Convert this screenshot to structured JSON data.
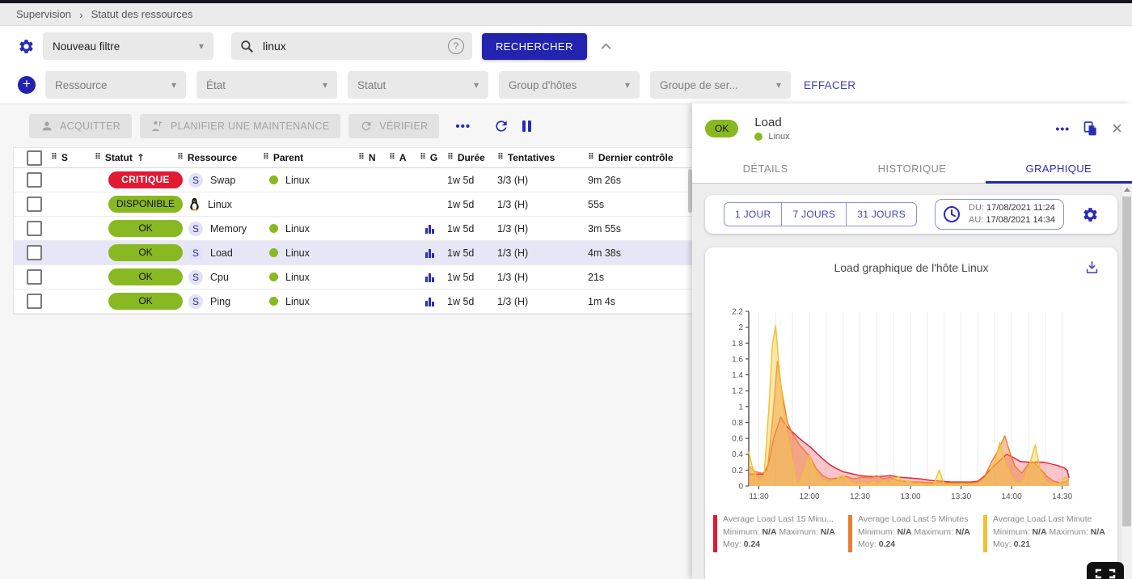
{
  "colors": {
    "accent_blue": "#2a2cb5",
    "button_blue": "#2223ae",
    "ok_green": "#88b922",
    "critical_red": "#e31932",
    "panel_bg": "#ededed",
    "selected_row": "#e7e6f6"
  },
  "icons": {
    "plus": "+",
    "close": "×",
    "more": "•••",
    "caret": "▾",
    "help": "?",
    "sort_up": "↑",
    "grip": "⠿",
    "breadcrumb_sep": "›"
  },
  "breadcrumb": {
    "items": [
      "Supervision",
      "Statut des ressources"
    ]
  },
  "filters": {
    "saved_filter_value": "Nouveau filtre",
    "search_value": "linux",
    "search_button": "RECHERCHER",
    "criteria": [
      {
        "label": "Ressource"
      },
      {
        "label": "État"
      },
      {
        "label": "Statut"
      },
      {
        "label": "Group d'hôtes"
      },
      {
        "label": "Groupe de ser..."
      }
    ],
    "clear_label": "EFFACER"
  },
  "toolbar": {
    "acquitter": "ACQUITTER",
    "planifier": "PLANIFIER UNE MAINTENANCE",
    "verifier": "VÉRIFIER"
  },
  "table": {
    "headers": {
      "s": "S",
      "statut": "Statut",
      "ressource": "Ressource",
      "parent": "Parent",
      "n": "N",
      "a": "A",
      "g": "G",
      "duree": "Durée",
      "tentatives": "Tentatives",
      "dernier": "Dernier contrôle"
    },
    "rows": [
      {
        "statut": "CRITIQUE",
        "severity": "critical",
        "badge": "S",
        "ressource": "Swap",
        "parent": "Linux",
        "graph": false,
        "duree": "1w 5d",
        "tentatives": "3/3 (H)",
        "dernier": "9m 26s",
        "selected": false
      },
      {
        "statut": "DISPONIBLE",
        "severity": "ok",
        "badge": "penguin-icon",
        "ressource": "Linux",
        "parent": "",
        "graph": false,
        "duree": "1w 5d",
        "tentatives": "1/3 (H)",
        "dernier": "55s",
        "selected": false
      },
      {
        "statut": "OK",
        "severity": "ok",
        "badge": "S",
        "ressource": "Memory",
        "parent": "Linux",
        "graph": true,
        "duree": "1w 5d",
        "tentatives": "1/3 (H)",
        "dernier": "3m 55s",
        "selected": false
      },
      {
        "statut": "OK",
        "severity": "ok",
        "badge": "S",
        "ressource": "Load",
        "parent": "Linux",
        "graph": true,
        "duree": "1w 5d",
        "tentatives": "1/3 (H)",
        "dernier": "4m 38s",
        "selected": true
      },
      {
        "statut": "OK",
        "severity": "ok",
        "badge": "S",
        "ressource": "Cpu",
        "parent": "Linux",
        "graph": true,
        "duree": "1w 5d",
        "tentatives": "1/3 (H)",
        "dernier": "21s",
        "selected": false
      },
      {
        "statut": "OK",
        "severity": "ok",
        "badge": "S",
        "ressource": "Ping",
        "parent": "Linux",
        "graph": true,
        "duree": "1w 5d",
        "tentatives": "1/3 (H)",
        "dernier": "1m 4s",
        "selected": false
      }
    ]
  },
  "panel": {
    "status": "OK",
    "title": "Load",
    "host": "Linux",
    "tabs": [
      {
        "label": "DÉTAILS"
      },
      {
        "label": "HISTORIQUE"
      },
      {
        "label": "GRAPHIQUE"
      }
    ],
    "active_tab": "GRAPHIQUE",
    "time_buttons": [
      {
        "label": "1 JOUR"
      },
      {
        "label": "7 JOURS"
      },
      {
        "label": "31 JOURS"
      }
    ],
    "period": {
      "du_label": "DU:",
      "du_value": "17/08/2021 11:24",
      "au_label": "AU:",
      "au_value": "17/08/2021 14:34"
    },
    "legend_labels": {
      "minimum": "Minimum:",
      "maximum": "Maximum:",
      "moy": "Moy:"
    }
  },
  "chart_data": {
    "type": "area",
    "title": "Load graphique de l'hôte Linux",
    "x_domain_minutes": [
      0,
      190
    ],
    "x_start_time": "11:24",
    "x_end_time": "14:34",
    "ylim": [
      0,
      2.2
    ],
    "y_tick_step": 0.2,
    "grid_minutes": 10,
    "grid_start_minute": 6,
    "x_ticks": [
      {
        "min": 6,
        "label": "11:30"
      },
      {
        "min": 36,
        "label": "12:00"
      },
      {
        "min": 66,
        "label": "12:30"
      },
      {
        "min": 96,
        "label": "13:00"
      },
      {
        "min": 126,
        "label": "13:30"
      },
      {
        "min": 156,
        "label": "14:00"
      },
      {
        "min": 186,
        "label": "14:30"
      }
    ],
    "series": [
      {
        "name": "Average Load Last 15 Minu...",
        "color": "#e3192f",
        "fill": "rgba(227,25,47,0.25)",
        "minimum": "N/A",
        "maximum": "N/A",
        "moy": "0.24",
        "points": [
          [
            0,
            0.15
          ],
          [
            5,
            0.15
          ],
          [
            9,
            0.15
          ],
          [
            12,
            0.3
          ],
          [
            15,
            0.62
          ],
          [
            19,
            0.87
          ],
          [
            22,
            0.76
          ],
          [
            26,
            0.68
          ],
          [
            30,
            0.6
          ],
          [
            33,
            0.55
          ],
          [
            36,
            0.5
          ],
          [
            40,
            0.42
          ],
          [
            44,
            0.34
          ],
          [
            48,
            0.27
          ],
          [
            52,
            0.22
          ],
          [
            56,
            0.18
          ],
          [
            60,
            0.16
          ],
          [
            66,
            0.13
          ],
          [
            72,
            0.12
          ],
          [
            78,
            0.12
          ],
          [
            84,
            0.13
          ],
          [
            90,
            0.11
          ],
          [
            96,
            0.1
          ],
          [
            102,
            0.09
          ],
          [
            108,
            0.07
          ],
          [
            114,
            0.06
          ],
          [
            120,
            0.05
          ],
          [
            126,
            0.05
          ],
          [
            132,
            0.05
          ],
          [
            136,
            0.06
          ],
          [
            140,
            0.13
          ],
          [
            144,
            0.22
          ],
          [
            148,
            0.3
          ],
          [
            153,
            0.4
          ],
          [
            157,
            0.36
          ],
          [
            161,
            0.31
          ],
          [
            166,
            0.3
          ],
          [
            171,
            0.3
          ],
          [
            175,
            0.3
          ],
          [
            179,
            0.28
          ],
          [
            183,
            0.26
          ],
          [
            187,
            0.23
          ],
          [
            189,
            0.2
          ],
          [
            190,
            0.1
          ]
        ]
      },
      {
        "name": "Average Load Last 5 Minutes",
        "color": "#ed7d31",
        "fill": "rgba(237,125,49,0.45)",
        "minimum": "N/A",
        "maximum": "N/A",
        "moy": "0.24",
        "points": [
          [
            0,
            0.25
          ],
          [
            4,
            0.18
          ],
          [
            8,
            0.16
          ],
          [
            11,
            0.2
          ],
          [
            14,
            0.8
          ],
          [
            17,
            1.57
          ],
          [
            20,
            1.15
          ],
          [
            23,
            0.8
          ],
          [
            26,
            0.66
          ],
          [
            30,
            0.52
          ],
          [
            33,
            0.45
          ],
          [
            36,
            0.38
          ],
          [
            40,
            0.22
          ],
          [
            44,
            0.13
          ],
          [
            48,
            0.09
          ],
          [
            53,
            0.1
          ],
          [
            58,
            0.12
          ],
          [
            62,
            0.09
          ],
          [
            67,
            0.11
          ],
          [
            72,
            0.1
          ],
          [
            76,
            0.13
          ],
          [
            80,
            0.09
          ],
          [
            84,
            0.11
          ],
          [
            88,
            0.07
          ],
          [
            92,
            0.06
          ],
          [
            97,
            0.05
          ],
          [
            102,
            0.05
          ],
          [
            107,
            0.04
          ],
          [
            112,
            0.04
          ],
          [
            117,
            0.04
          ],
          [
            122,
            0.04
          ],
          [
            127,
            0.04
          ],
          [
            132,
            0.04
          ],
          [
            136,
            0.05
          ],
          [
            140,
            0.12
          ],
          [
            144,
            0.3
          ],
          [
            148,
            0.45
          ],
          [
            152,
            0.63
          ],
          [
            155,
            0.42
          ],
          [
            158,
            0.25
          ],
          [
            162,
            0.16
          ],
          [
            166,
            0.28
          ],
          [
            169,
            0.3
          ],
          [
            173,
            0.22
          ],
          [
            177,
            0.12
          ],
          [
            181,
            0.06
          ],
          [
            185,
            0.04
          ],
          [
            188,
            0.05
          ],
          [
            190,
            0.08
          ]
        ]
      },
      {
        "name": "Average Load Last Minute",
        "color": "#f2c12e",
        "fill": "rgba(244,203,70,0.45)",
        "minimum": "N/A",
        "maximum": "N/A",
        "moy": "0.21",
        "points": [
          [
            0,
            0.43
          ],
          [
            2,
            0.25
          ],
          [
            4,
            0.15
          ],
          [
            6,
            0.05
          ],
          [
            9,
            0.1
          ],
          [
            12,
            1.0
          ],
          [
            14,
            1.78
          ],
          [
            16,
            2.02
          ],
          [
            18,
            1.5
          ],
          [
            20,
            1.1
          ],
          [
            22,
            0.75
          ],
          [
            24,
            0.5
          ],
          [
            26,
            0.3
          ],
          [
            28,
            0.05
          ],
          [
            30,
            0.02
          ],
          [
            33,
            0.2
          ],
          [
            36,
            0.38
          ],
          [
            39,
            0.22
          ],
          [
            42,
            0.1
          ],
          [
            45,
            0.06
          ],
          [
            48,
            0.04
          ],
          [
            52,
            0.08
          ],
          [
            55,
            0.13
          ],
          [
            58,
            0.1
          ],
          [
            61,
            0.04
          ],
          [
            64,
            0.02
          ],
          [
            68,
            0.05
          ],
          [
            71,
            0.02
          ],
          [
            74,
            0.06
          ],
          [
            77,
            0.03
          ],
          [
            80,
            0.06
          ],
          [
            83,
            0.03
          ],
          [
            86,
            0.09
          ],
          [
            89,
            0.12
          ],
          [
            92,
            0.04
          ],
          [
            95,
            0.06
          ],
          [
            98,
            0.03
          ],
          [
            101,
            0.04
          ],
          [
            104,
            0.02
          ],
          [
            107,
            0.02
          ],
          [
            110,
            0.03
          ],
          [
            113,
            0.2
          ],
          [
            116,
            0.03
          ],
          [
            119,
            0.02
          ],
          [
            123,
            0.02
          ],
          [
            127,
            0.03
          ],
          [
            131,
            0.02
          ],
          [
            135,
            0.03
          ],
          [
            139,
            0.06
          ],
          [
            143,
            0.18
          ],
          [
            146,
            0.3
          ],
          [
            149,
            0.55
          ],
          [
            152,
            0.3
          ],
          [
            155,
            0.15
          ],
          [
            158,
            0.05
          ],
          [
            161,
            0.02
          ],
          [
            164,
            0.1
          ],
          [
            167,
            0.3
          ],
          [
            170,
            0.52
          ],
          [
            173,
            0.2
          ],
          [
            176,
            0.06
          ],
          [
            179,
            0.03
          ],
          [
            182,
            0.02
          ],
          [
            185,
            0.04
          ],
          [
            188,
            0.12
          ],
          [
            190,
            0.05
          ]
        ]
      }
    ]
  }
}
